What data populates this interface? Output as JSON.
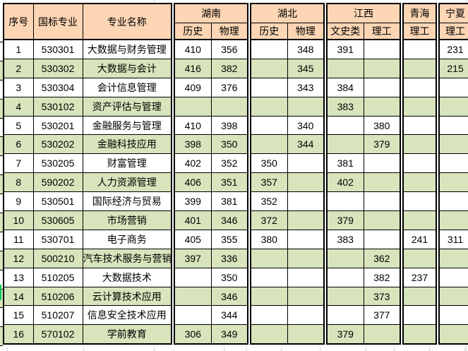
{
  "table": {
    "header": {
      "col_serial": "序号",
      "col_code": "国标专业",
      "col_major": "专业名称",
      "groups": [
        {
          "name": "湖南",
          "subs": [
            "历史",
            "物理"
          ]
        },
        {
          "name": "湖北",
          "subs": [
            "历史",
            "物理"
          ]
        },
        {
          "name": "江西",
          "subs": [
            "文史类",
            "理工"
          ]
        },
        {
          "name": "青海",
          "subs": [
            "理工"
          ]
        },
        {
          "name": "宁夏",
          "subs": [
            "理工"
          ]
        }
      ]
    },
    "rows": [
      {
        "no": "1",
        "code": "530301",
        "major": "大数据与财务管理",
        "scores": [
          "410",
          "356",
          "",
          "348",
          "391",
          "",
          "",
          "231"
        ]
      },
      {
        "no": "2",
        "code": "530302",
        "major": "大数据与会计",
        "scores": [
          "416",
          "382",
          "",
          "345",
          "",
          "",
          "",
          "215"
        ]
      },
      {
        "no": "3",
        "code": "530304",
        "major": "会计信息管理",
        "scores": [
          "409",
          "376",
          "",
          "343",
          "384",
          "",
          "",
          ""
        ]
      },
      {
        "no": "4",
        "code": "530102",
        "major": "资产评估与管理",
        "scores": [
          "",
          "",
          "",
          "",
          "383",
          "",
          "",
          ""
        ]
      },
      {
        "no": "5",
        "code": "530201",
        "major": "金融服务与管理",
        "scores": [
          "410",
          "398",
          "",
          "340",
          "",
          "380",
          "",
          ""
        ]
      },
      {
        "no": "6",
        "code": "530202",
        "major": "金融科技应用",
        "scores": [
          "398",
          "350",
          "",
          "344",
          "",
          "379",
          "",
          ""
        ]
      },
      {
        "no": "7",
        "code": "530205",
        "major": "财富管理",
        "scores": [
          "402",
          "352",
          "350",
          "",
          "381",
          "",
          "",
          ""
        ]
      },
      {
        "no": "8",
        "code": "590202",
        "major": "人力资源管理",
        "scores": [
          "406",
          "351",
          "357",
          "",
          "402",
          "",
          "",
          ""
        ]
      },
      {
        "no": "9",
        "code": "530501",
        "major": "国际经济与贸易",
        "scores": [
          "399",
          "381",
          "352",
          "",
          "",
          "",
          "",
          ""
        ]
      },
      {
        "no": "10",
        "code": "530605",
        "major": "市场营销",
        "scores": [
          "401",
          "346",
          "372",
          "",
          "379",
          "",
          "",
          ""
        ]
      },
      {
        "no": "11",
        "code": "530701",
        "major": "电子商务",
        "scores": [
          "405",
          "355",
          "380",
          "",
          "383",
          "",
          "241",
          "311"
        ]
      },
      {
        "no": "12",
        "code": "500210",
        "major": "汽车技术服务与营销",
        "scores": [
          "397",
          "336",
          "",
          "",
          "",
          "362",
          "",
          ""
        ]
      },
      {
        "no": "13",
        "code": "510205",
        "major": "大数据技术",
        "scores": [
          "",
          "350",
          "",
          "",
          "",
          "382",
          "237",
          ""
        ]
      },
      {
        "no": "14",
        "code": "510206",
        "major": "云计算技术应用",
        "scores": [
          "",
          "346",
          "",
          "",
          "",
          "373",
          "",
          ""
        ]
      },
      {
        "no": "15",
        "code": "510207",
        "major": "信息安全技术应用",
        "scores": [
          "",
          "344",
          "",
          "",
          "",
          "377",
          "",
          ""
        ]
      },
      {
        "no": "16",
        "code": "570102",
        "major": "学前教育",
        "scores": [
          "306",
          "349",
          "",
          "",
          "379",
          "",
          "",
          ""
        ]
      }
    ]
  },
  "colors": {
    "header_fill": "#FCD5B4",
    "alt_row_fill": "#D8E4BC",
    "border": "#000000",
    "gridline": "#CDD3DB",
    "margin_accent": "#00C65A"
  }
}
